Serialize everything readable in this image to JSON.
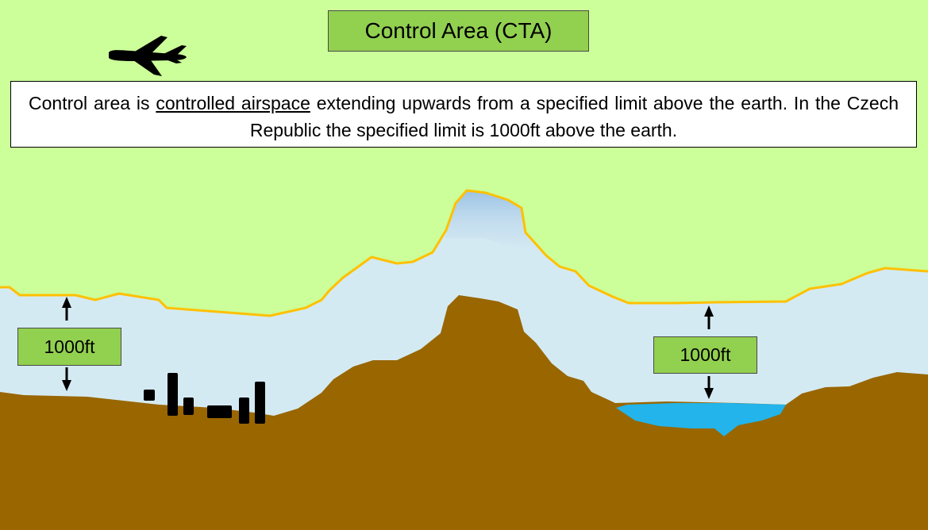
{
  "title": "Control Area (CTA)",
  "definition": {
    "before": "Control area is ",
    "link_text": "controlled airspace",
    "after": " extending upwards from a specified limit above the earth. In the Czech Republic the specified limit is 1000ft above the earth."
  },
  "height_labels": {
    "left": "1000ft",
    "right": "1000ft"
  },
  "colors": {
    "sky": "#ccff99",
    "airspace": "#d4eaf2",
    "cta_boundary": "#ffc000",
    "ground": "#996600",
    "lake": "#22b4ea",
    "label_fill": "#92d050",
    "buildings": "#000000"
  },
  "icons": {
    "aircraft": "airplane-icon",
    "buildings": "town-buildings-icon",
    "lake": "lake-icon"
  }
}
